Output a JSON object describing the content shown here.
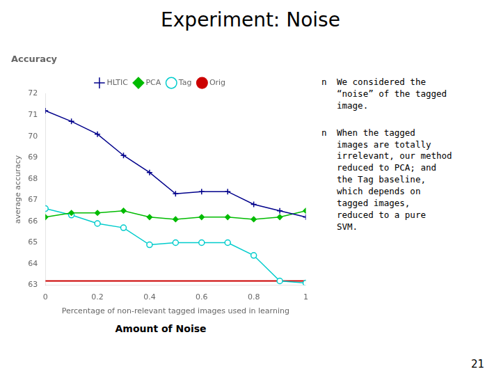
{
  "chart_data": {
    "type": "line",
    "title": "Experiment: Noise",
    "subtitle": "Accuracy",
    "xlabel": "Percentage of non-relevant tagged images used in learning",
    "ylabel": "average accuracy",
    "annotations": [
      "Amount of Noise",
      "n",
      "We considered the\n“noise” of the tagged\nimage.",
      "n",
      "When the tagged\nimages are totally\nirrelevant, our method\nreduced to PCA; and\nthe Tag baseline,\nwhich depends on\ntagged images,\nreduced to a pure\nSVM.",
      "21"
    ],
    "x": [
      0,
      0.1,
      0.2,
      0.3,
      0.4,
      0.5,
      0.6,
      0.7,
      0.8,
      0.9,
      1.0
    ],
    "series": [
      {
        "name": "HLTIC",
        "color": "#00008B",
        "marker": "plus",
        "values": [
          71.2,
          70.7,
          70.1,
          69.1,
          68.3,
          67.3,
          67.4,
          67.4,
          66.8,
          66.5,
          66.2
        ]
      },
      {
        "name": "PCA",
        "color": "#00BB00",
        "marker": "diamond",
        "values": [
          66.2,
          66.4,
          66.4,
          66.5,
          66.2,
          66.1,
          66.2,
          66.2,
          66.1,
          66.2,
          66.5
        ]
      },
      {
        "name": "Tag",
        "color": "#00CCCC",
        "marker": "circle",
        "values": [
          66.6,
          66.3,
          65.9,
          65.7,
          64.9,
          65.0,
          65.0,
          65.0,
          64.4,
          63.2,
          63.1
        ]
      },
      {
        "name": "Orig",
        "color": "#CC0000",
        "marker": "none",
        "values": [
          63.2,
          63.2,
          63.2,
          63.2,
          63.2,
          63.2,
          63.2,
          63.2,
          63.2,
          63.2,
          63.2
        ]
      }
    ],
    "xlim": [
      0,
      1
    ],
    "ylim": [
      63,
      72
    ],
    "xticks": [
      0,
      0.2,
      0.4,
      0.6,
      0.8,
      1
    ],
    "yticks": [
      63,
      64,
      65,
      66,
      67,
      68,
      69,
      70,
      71,
      72
    ],
    "grid": false,
    "legend": "top"
  }
}
